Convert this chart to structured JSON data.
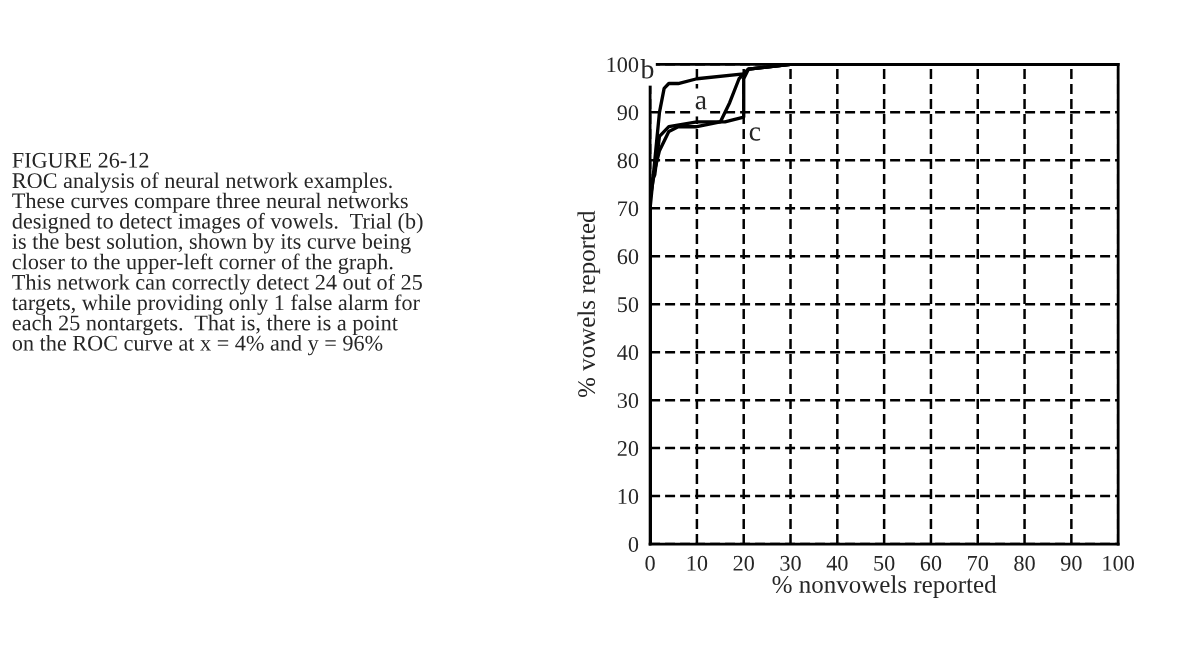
{
  "chart_data": {
    "type": "line",
    "title": "FIGURE 26-12",
    "subtitle": "ROC analysis of neural network examples.\nThese curves compare three neural networks\ndesigned to detect images of vowels.  Trial (b)\nis the best solution, shown by its curve being\ncloser to the upper-left corner of the graph.\nThis network can correctly detect 24 out of 25\ntargets, while providing only 1 false alarm for\neach 25 nontargets.  That is, there is a point\non the ROC curve at x = 4% and y = 96%",
    "xlabel": "% nonvowels reported",
    "ylabel": "% vowels reported",
    "series": [
      {
        "color": "#000000",
        "x": [
          0,
          0,
          1,
          2,
          4,
          6,
          10,
          15,
          17,
          19,
          20,
          21,
          30,
          100
        ],
        "values": [
          0,
          72,
          78,
          82,
          86,
          87,
          87,
          88,
          92,
          97,
          98,
          99,
          100,
          100
        ]
      },
      {
        "color": "#000000",
        "x": [
          0,
          0,
          1,
          2,
          3,
          4,
          6,
          10,
          20,
          21,
          30,
          100
        ],
        "values": [
          0,
          70,
          80,
          90,
          95,
          96,
          96,
          97,
          98,
          99,
          100,
          100
        ]
      },
      {
        "color": "#000000",
        "x": [
          0,
          0,
          1,
          2,
          4,
          10,
          16,
          20,
          20,
          21,
          30,
          100
        ],
        "values": [
          0,
          75,
          77,
          85,
          87,
          88,
          88,
          89,
          97,
          99,
          100,
          100
        ]
      }
    ],
    "annotations": [
      {
        "text": "a",
        "x": 15,
        "y": 88
      },
      {
        "text": "b",
        "x": 3,
        "y": 95
      },
      {
        "text": "c",
        "x": 20,
        "y": 89
      }
    ],
    "xlim": [
      0,
      100
    ],
    "ylim": [
      0,
      100
    ],
    "xticks": [
      0,
      10,
      20,
      30,
      40,
      50,
      60,
      70,
      80,
      90,
      100
    ],
    "yticks": [
      0,
      10,
      20,
      30,
      40,
      50,
      60,
      70,
      80,
      90,
      100
    ],
    "grid": true,
    "line_style": "solid",
    "marker": "none",
    "legend": false
  }
}
